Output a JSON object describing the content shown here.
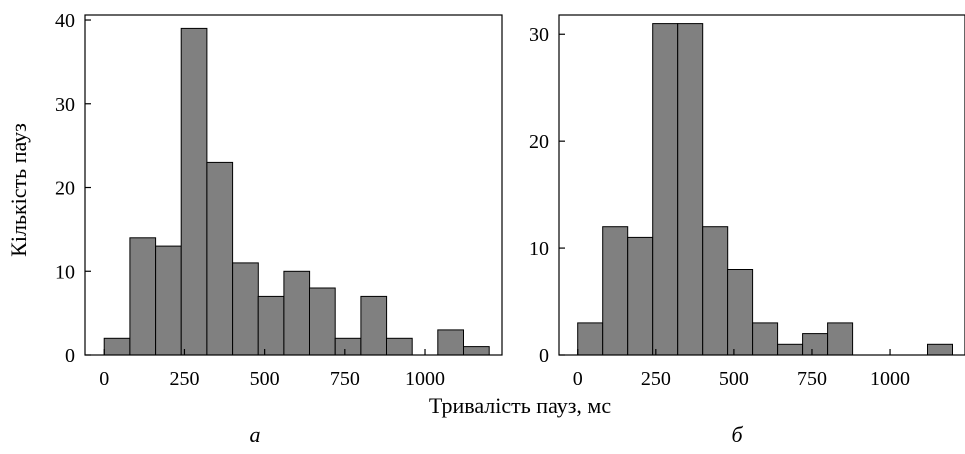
{
  "figure": {
    "ylabel": "Кількість пауз",
    "xlabel": "Тривалість пауз, мс"
  },
  "chart_data": [
    {
      "type": "bar",
      "panel_label": "а",
      "bin_width": 80,
      "bin_start": 0,
      "values": [
        2,
        14,
        13,
        39,
        23,
        11,
        7,
        10,
        8,
        2,
        7,
        2,
        0,
        3,
        1
      ],
      "xticks": [
        0,
        250,
        500,
        750,
        1000
      ],
      "yticks": [
        0,
        10,
        20,
        30,
        40
      ],
      "xlim": [
        -60,
        1240
      ],
      "ylim": [
        0,
        40.6
      ]
    },
    {
      "type": "bar",
      "panel_label": "б",
      "bin_width": 80,
      "bin_start": 0,
      "values": [
        3,
        12,
        11,
        31,
        31,
        12,
        8,
        3,
        1,
        2,
        3,
        0,
        0,
        0,
        1
      ],
      "xticks": [
        0,
        250,
        500,
        750,
        1000
      ],
      "yticks": [
        0,
        10,
        20,
        30
      ],
      "xlim": [
        -60,
        1240
      ],
      "ylim": [
        0,
        31.8
      ]
    }
  ]
}
